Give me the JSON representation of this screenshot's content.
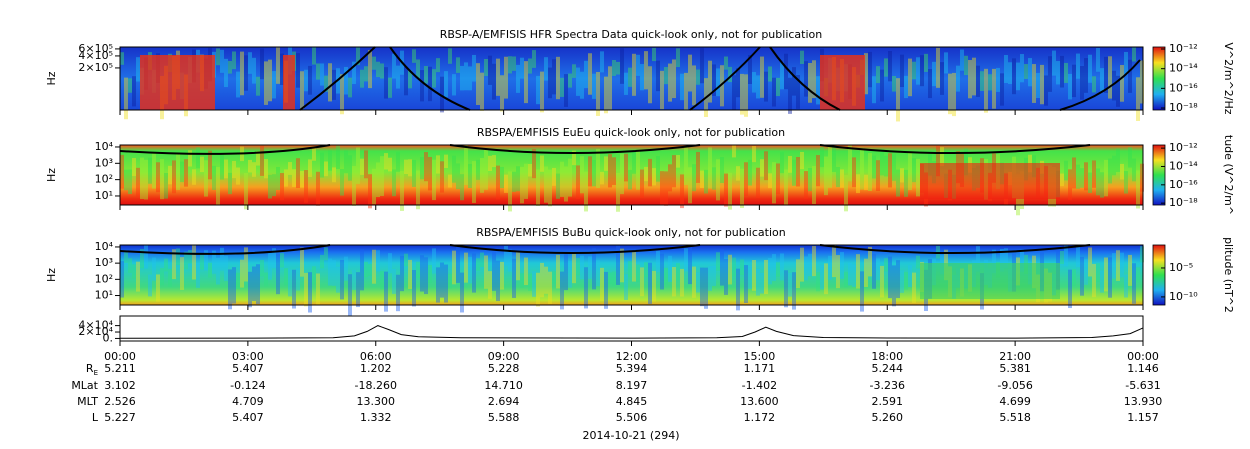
{
  "chart_data": [
    {
      "type": "spectrogram",
      "title": "RBSP-A/EMFISIS  HFR Spectra Data quick-look only, not for publication",
      "ylabel": "Hz",
      "ylog": true,
      "ylim": [
        17600,
        670000
      ],
      "yticks": [
        {
          "value": 600000,
          "label": "6×10⁵"
        },
        {
          "value": 400000,
          "label": "4×10⁵"
        },
        {
          "value": 200000,
          "label": "2×10⁵"
        }
      ],
      "zlabel": "V^2/m^2/Hz",
      "zlim": [
        6.3e-19,
        1.6e-12
      ],
      "zticks": [
        {
          "value": 1e-12,
          "label": "10⁻¹²"
        },
        {
          "value": 1e-14,
          "label": "10⁻¹⁴"
        },
        {
          "value": 1e-16,
          "label": "10⁻¹⁶"
        },
        {
          "value": 1e-18,
          "label": "10⁻¹⁸"
        }
      ]
    },
    {
      "type": "spectrogram",
      "title": "RBSPA/EMFISIS  EuEu quick-look only, not for publication",
      "ylabel": "Hz",
      "ylog": true,
      "ylim": [
        2.8,
        13200
      ],
      "yticks": [
        {
          "value": 10000,
          "label": "10⁴"
        },
        {
          "value": 1000,
          "label": "10³"
        },
        {
          "value": 100,
          "label": "10²"
        },
        {
          "value": 10,
          "label": "10¹"
        }
      ],
      "zlabel": "tude (V^2/m^",
      "zlim": [
        6.3e-19,
        2.2e-12
      ],
      "zticks": [
        {
          "value": 1e-12,
          "label": "10⁻¹²"
        },
        {
          "value": 1e-14,
          "label": "10⁻¹⁴"
        },
        {
          "value": 1e-16,
          "label": "10⁻¹⁶"
        },
        {
          "value": 1e-18,
          "label": "10⁻¹⁸"
        }
      ]
    },
    {
      "type": "spectrogram",
      "title": "RBSPA/EMFISIS  BuBu quick-look only, not for publication",
      "ylabel": "Hz",
      "ylog": true,
      "ylim": [
        2.6,
        13200
      ],
      "yticks": [
        {
          "value": 10000,
          "label": "10⁴"
        },
        {
          "value": 1000,
          "label": "10³"
        },
        {
          "value": 100,
          "label": "10²"
        },
        {
          "value": 10,
          "label": "10¹"
        }
      ],
      "zlabel": "plitude (nT^2",
      "zlim": [
        4e-12,
        0.093
      ],
      "zticks": [
        {
          "value": 1e-05,
          "label": "10⁻⁵"
        },
        {
          "value": 1e-10,
          "label": "10⁻¹⁰"
        }
      ]
    },
    {
      "type": "line",
      "ylog": false,
      "ylim": [
        -8000,
        70000
      ],
      "yticks": [
        {
          "value": 40000,
          "label": "4×10⁴"
        },
        {
          "value": 20000,
          "label": "2×10⁴"
        },
        {
          "value": 0,
          "label": "0."
        }
      ],
      "xlim": [
        0,
        24
      ],
      "xticks": [
        {
          "value": 0,
          "label": "00:00"
        },
        {
          "value": 3,
          "label": "03:00"
        },
        {
          "value": 6,
          "label": "06:00"
        },
        {
          "value": 9,
          "label": "09:00"
        },
        {
          "value": 12,
          "label": "12:00"
        },
        {
          "value": 15,
          "label": "15:00"
        },
        {
          "value": 18,
          "label": "18:00"
        },
        {
          "value": 21,
          "label": "21:00"
        },
        {
          "value": 24,
          "label": "00:00"
        }
      ],
      "x": [
        0,
        3,
        5,
        5.5,
        5.8,
        6.05,
        6.3,
        6.6,
        7,
        8,
        12,
        14,
        14.6,
        14.9,
        15.15,
        15.4,
        15.8,
        16.5,
        18,
        21,
        22.8,
        23.3,
        23.7,
        24
      ],
      "values": [
        800,
        1000,
        2000,
        8000,
        22000,
        40000,
        28000,
        12000,
        5000,
        2000,
        1000,
        2000,
        6000,
        20000,
        35000,
        22000,
        9000,
        3000,
        1500,
        1000,
        3000,
        8000,
        15000,
        33000
      ]
    }
  ],
  "ephemeris": {
    "rows": [
      {
        "label": "R",
        "subscript": "E",
        "values": [
          "5.211",
          "5.407",
          "1.202",
          "5.228",
          "5.394",
          "1.171",
          "5.244",
          "5.381",
          "1.146"
        ]
      },
      {
        "label": "MLat",
        "values": [
          "3.102",
          "-0.124",
          "-18.260",
          "14.710",
          "8.197",
          "-1.402",
          "-3.236",
          "-9.056",
          "-5.631"
        ]
      },
      {
        "label": "MLT",
        "values": [
          "2.526",
          "4.709",
          "13.300",
          "2.694",
          "4.845",
          "13.600",
          "2.591",
          "4.699",
          "13.930"
        ]
      },
      {
        "label": "L",
        "values": [
          "5.227",
          "5.407",
          "1.332",
          "5.588",
          "5.506",
          "1.172",
          "5.260",
          "5.518",
          "1.157"
        ]
      }
    ]
  },
  "date_label": "2014-10-21 (294)"
}
